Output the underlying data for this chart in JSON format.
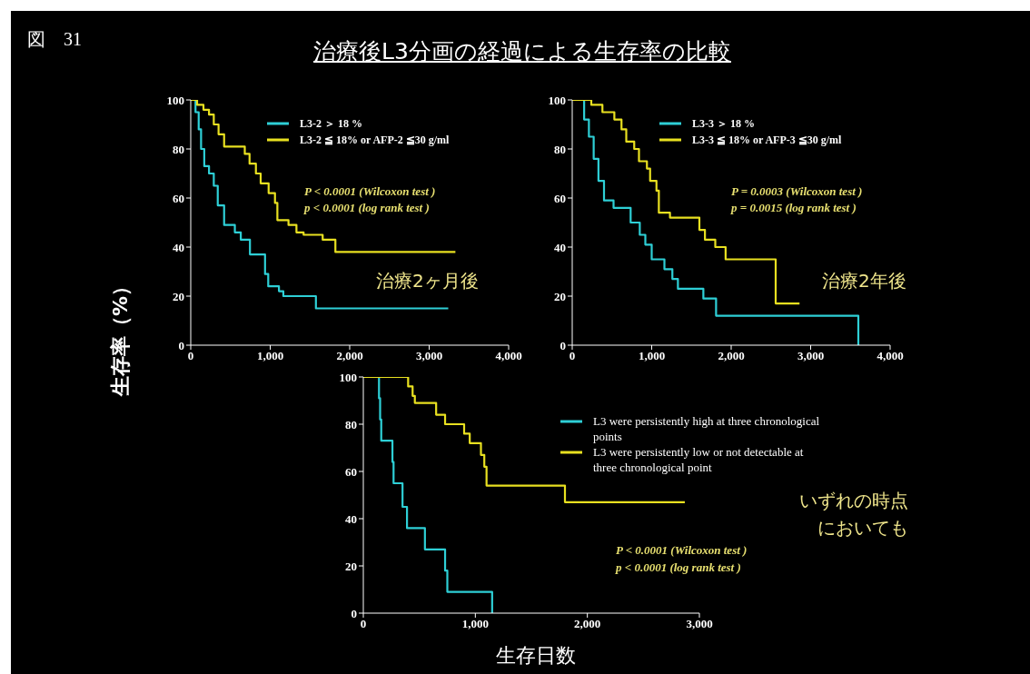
{
  "chart_data": [
    {
      "type": "step",
      "title": "治療後L3分画の経過による生存率の比較",
      "ylabel": "生存率（%）",
      "legend": "top right",
      "marker": "none",
      "line_style": "solid",
      "grid": false,
      "xlim": [
        0,
        4000
      ],
      "xticks": [
        {
          "value": 0,
          "label": "0"
        },
        {
          "value": 1000,
          "label": "1,000"
        },
        {
          "value": 2000,
          "label": "2,000"
        },
        {
          "value": 3000,
          "label": "3,000"
        },
        {
          "value": 4000,
          "label": "4,000"
        }
      ],
      "ylim": [
        0,
        100
      ],
      "yticks": [
        0,
        20,
        40,
        60,
        80,
        100
      ],
      "annotations": [
        "図　31",
        "P < 0.0001 (Wilcoxon test )",
        "p < 0.0001 (log rank test )",
        "治療2ヶ月後"
      ],
      "series": [
        {
          "name": "L3-2 ＞ 18 %",
          "color": "#2ecfd6",
          "x": [
            0,
            60,
            100,
            130,
            170,
            230,
            290,
            340,
            420,
            555,
            630,
            745,
            935,
            975,
            1110,
            1165,
            1575,
            3240
          ],
          "values": [
            100,
            95,
            88,
            80,
            73,
            70,
            65,
            57,
            49,
            46,
            43,
            37,
            29,
            24,
            22,
            20,
            15,
            15
          ]
        },
        {
          "name": "L3-2 ≦ 18% or AFP-2 ≦30 g/ml",
          "color": "#e8e020",
          "x": [
            0,
            80,
            160,
            230,
            290,
            350,
            420,
            650,
            680,
            740,
            820,
            880,
            980,
            1060,
            1090,
            1230,
            1330,
            1420,
            1660,
            1820,
            3330
          ],
          "values": [
            100,
            98,
            96,
            94,
            90,
            86,
            81,
            81,
            78,
            74,
            70,
            66,
            62,
            58,
            51,
            49,
            46,
            45,
            43,
            38,
            38
          ]
        }
      ]
    },
    {
      "type": "step",
      "legend": "top right",
      "marker": "none",
      "line_style": "solid",
      "grid": false,
      "xlim": [
        0,
        4000
      ],
      "xticks": [
        {
          "value": 0,
          "label": "0"
        },
        {
          "value": 1000,
          "label": "1,000"
        },
        {
          "value": 2000,
          "label": "2,000"
        },
        {
          "value": 3000,
          "label": "3,000"
        },
        {
          "value": 4000,
          "label": "4,000"
        }
      ],
      "ylim": [
        0,
        100
      ],
      "yticks": [
        0,
        20,
        40,
        60,
        80,
        100
      ],
      "annotations": [
        "P = 0.0003 (Wilcoxon test )",
        "p = 0.0015 (log rank test )",
        "治療2年後"
      ],
      "series": [
        {
          "name": "L3-3 ＞ 18 %",
          "color": "#2ecfd6",
          "x": [
            0,
            110,
            150,
            210,
            270,
            330,
            400,
            520,
            735,
            850,
            920,
            1000,
            1160,
            1260,
            1330,
            1650,
            1810,
            3600,
            3600
          ],
          "values": [
            100,
            100,
            92,
            85,
            76,
            67,
            59,
            56,
            50,
            45,
            41,
            35,
            31,
            27,
            23,
            19,
            12,
            12,
            0
          ]
        },
        {
          "name": "L3-3 ≦ 18% or AFP-3 ≦30 g/ml",
          "color": "#e8e020",
          "x": [
            0,
            240,
            380,
            530,
            620,
            680,
            780,
            840,
            940,
            980,
            1060,
            1090,
            1230,
            1600,
            1670,
            1800,
            1930,
            2560,
            2860
          ],
          "values": [
            100,
            98,
            95,
            92,
            88,
            83,
            80,
            75,
            72,
            67,
            63,
            54,
            52,
            47,
            43,
            40,
            35,
            17,
            17
          ]
        }
      ]
    },
    {
      "type": "step",
      "xlabel": "生存日数",
      "legend": "top right",
      "marker": "none",
      "line_style": "solid",
      "grid": false,
      "xlim": [
        0,
        3000
      ],
      "xticks": [
        {
          "value": 0,
          "label": "0"
        },
        {
          "value": 1000,
          "label": "1,000"
        },
        {
          "value": 2000,
          "label": "2,000"
        },
        {
          "value": 3000,
          "label": "3,000"
        }
      ],
      "ylim": [
        0,
        100
      ],
      "yticks": [
        0,
        20,
        40,
        60,
        80,
        100
      ],
      "annotations": [
        "P < 0.0001 (Wilcoxon test )",
        "p < 0.0001 (log rank test )",
        "いずれの時点",
        "においても"
      ],
      "series": [
        {
          "name": "L3 were persistently high at three chronological points",
          "color": "#2ecfd6",
          "x": [
            0,
            130,
            140,
            150,
            160,
            260,
            270,
            350,
            390,
            550,
            730,
            750,
            1150,
            1150
          ],
          "values": [
            100,
            100,
            91,
            82,
            73,
            64,
            55,
            45,
            36,
            27,
            18,
            9,
            9,
            0
          ]
        },
        {
          "name": "L3 were persistently low or not detectable at three chronological point",
          "color": "#e8e020",
          "x": [
            0,
            390,
            400,
            440,
            460,
            650,
            730,
            900,
            950,
            1050,
            1080,
            1100,
            1800,
            2870
          ],
          "values": [
            100,
            100,
            96,
            92,
            89,
            84,
            80,
            76,
            72,
            67,
            62,
            54,
            47,
            47
          ]
        }
      ]
    }
  ]
}
